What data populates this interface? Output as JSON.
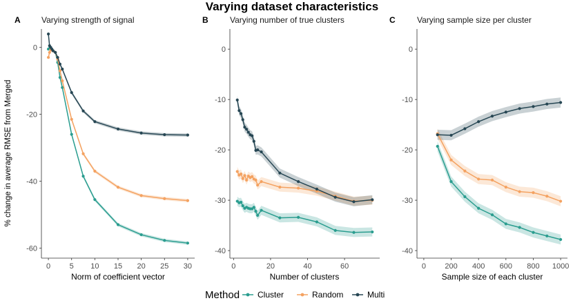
{
  "figure_title": "Varying dataset characteristics",
  "y_label": "% change in average RMSE from Merged",
  "legend": {
    "title": "Method",
    "entries": [
      {
        "name": "Cluster",
        "color": "#2a9d8f"
      },
      {
        "name": "Random",
        "color": "#f4a261"
      },
      {
        "name": "Multi",
        "color": "#264653"
      }
    ]
  },
  "chart_data": [
    {
      "type": "line",
      "label": "A",
      "title": "Varying strength of signal",
      "xlabel": "Norm of coefficient vector",
      "xlim": [
        -1.5,
        31.5
      ],
      "ylim": [
        -63,
        5.5
      ],
      "xticks": [
        0,
        5,
        10,
        15,
        20,
        25,
        30
      ],
      "yticks": [
        0,
        -20,
        -40,
        -60
      ],
      "band": 0.5,
      "series": [
        {
          "name": "Cluster",
          "color": "#2a9d8f",
          "x": [
            0,
            0.25,
            0.5,
            0.75,
            1,
            1.5,
            2,
            2.5,
            3,
            5,
            7.5,
            10,
            15,
            20,
            25,
            30
          ],
          "y": [
            -0.5,
            -0.3,
            -0.5,
            -0.8,
            -1.0,
            -1.5,
            -4.5,
            -9,
            -12,
            -26,
            -38.5,
            -45.5,
            -53,
            -56,
            -57.7,
            -58.5
          ]
        },
        {
          "name": "Random",
          "color": "#f4a261",
          "x": [
            0,
            0.25,
            0.5,
            0.75,
            1,
            1.5,
            2,
            2.5,
            3,
            5,
            7.5,
            10,
            15,
            20,
            25,
            30
          ],
          "y": [
            -3,
            -1.5,
            -0.7,
            -0.8,
            -1.0,
            -1.5,
            -3.5,
            -7,
            -10,
            -21.5,
            -31.8,
            -37,
            -41.8,
            -44.3,
            -45.2,
            -45.8
          ]
        },
        {
          "name": "Multi",
          "color": "#264653",
          "x": [
            0,
            0.25,
            0.5,
            0.75,
            1,
            1.5,
            2,
            2.5,
            3,
            5,
            7.5,
            10,
            15,
            20,
            25,
            30
          ],
          "y": [
            4,
            0.5,
            0,
            -0.5,
            -1.0,
            -1.5,
            -3.0,
            -5,
            -6.5,
            -13.5,
            -19,
            -22.2,
            -24.4,
            -25.6,
            -26.1,
            -26.2
          ]
        }
      ]
    },
    {
      "type": "line",
      "label": "B",
      "title": "Varying number of true clusters",
      "xlabel": "Number of clusters",
      "xlim": [
        -2,
        79
      ],
      "ylim": [
        -41.5,
        4
      ],
      "xticks": [
        0,
        20,
        40,
        60
      ],
      "yticks": [
        0,
        -10,
        -20,
        -30,
        -40
      ],
      "band": 0.9,
      "series": [
        {
          "name": "Cluster",
          "color": "#2a9d8f",
          "x": [
            2,
            3,
            4,
            5,
            6,
            7,
            8,
            9,
            10,
            11,
            12,
            13,
            15,
            25,
            35,
            45,
            55,
            65,
            75
          ],
          "y": [
            -30.2,
            -30.5,
            -30.4,
            -31.1,
            -31.6,
            -31.4,
            -31.6,
            -31.7,
            -31.7,
            -31.4,
            -32.2,
            -33,
            -32,
            -33.5,
            -33.4,
            -34.3,
            -36,
            -36.4,
            -36.3
          ]
        },
        {
          "name": "Random",
          "color": "#f4a261",
          "x": [
            2,
            3,
            4,
            5,
            6,
            7,
            8,
            9,
            10,
            11,
            12,
            13,
            15,
            25,
            35,
            45,
            55,
            65,
            75
          ],
          "y": [
            -24.3,
            -25,
            -24.8,
            -25.7,
            -25.1,
            -26,
            -25.2,
            -25.5,
            -25.3,
            -25.8,
            -26,
            -27,
            -26.3,
            -27.4,
            -27.6,
            -28.2,
            -29.2,
            -30.2,
            -30
          ]
        },
        {
          "name": "Multi",
          "color": "#264653",
          "x": [
            2,
            3,
            4,
            5,
            6,
            7,
            8,
            9,
            10,
            11,
            12,
            13,
            15,
            25,
            35,
            45,
            55,
            65,
            75
          ],
          "y": [
            -10.1,
            -12.2,
            -12.8,
            -14,
            -15.5,
            -15.9,
            -16.5,
            -17,
            -17.2,
            -18.3,
            -20.1,
            -20,
            -20.4,
            -24.6,
            -26.3,
            -27.8,
            -29.4,
            -30.3,
            -29.9
          ]
        }
      ]
    },
    {
      "type": "line",
      "label": "C",
      "title": "Varying sample size per cluster",
      "xlabel": "Sample size of each cluster",
      "xlim": [
        -50,
        1050
      ],
      "ylim": [
        -41.5,
        4
      ],
      "xticks": [
        0,
        200,
        400,
        600,
        800,
        1000
      ],
      "yticks": [
        0,
        -10,
        -20,
        -30,
        -40
      ],
      "band": 1.0,
      "series": [
        {
          "name": "Cluster",
          "color": "#2a9d8f",
          "x": [
            100,
            200,
            300,
            400,
            500,
            600,
            700,
            800,
            900,
            1000
          ],
          "y": [
            -19.3,
            -26.3,
            -29.3,
            -31.6,
            -32.9,
            -34.7,
            -35.4,
            -36.4,
            -37.1,
            -37.8
          ]
        },
        {
          "name": "Random",
          "color": "#f4a261",
          "x": [
            100,
            200,
            300,
            400,
            500,
            600,
            700,
            800,
            900,
            1000
          ],
          "y": [
            -16.8,
            -22,
            -24.2,
            -25.8,
            -26,
            -27.4,
            -28.3,
            -28.5,
            -29.2,
            -30.2
          ]
        },
        {
          "name": "Multi",
          "color": "#264653",
          "x": [
            100,
            200,
            300,
            400,
            500,
            600,
            700,
            800,
            900,
            1000
          ],
          "y": [
            -17,
            -17.1,
            -15.8,
            -14.4,
            -13.3,
            -12.5,
            -11.8,
            -11.4,
            -10.9,
            -10.6
          ]
        }
      ]
    }
  ]
}
